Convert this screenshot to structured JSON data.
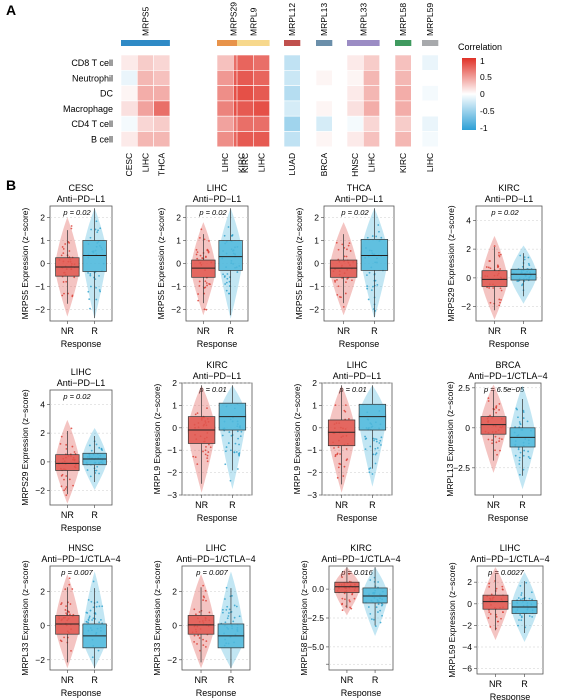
{
  "panel_a_label": "A",
  "panel_b_label": "B",
  "legend": {
    "title": "Correlation",
    "ticks": [
      "1",
      "0.5",
      "0",
      "-0.5",
      "-1"
    ],
    "high_color": "#e03127",
    "mid_color": "#ffffff",
    "low_color": "#2c9fd6"
  },
  "chart_data": [
    {
      "type": "heatmap",
      "panel": "A",
      "rows": [
        "CD8 T cell",
        "Neutrophil",
        "DC",
        "Macrophage",
        "CD4 T cell",
        "B cell"
      ],
      "groups": [
        {
          "gene": "MRPS5",
          "color": "#2f8ac6",
          "cancers": [
            "CESC",
            "LIHC",
            "THCA"
          ],
          "values": [
            [
              0.1,
              0.25,
              0.2
            ],
            [
              -0.1,
              0.35,
              0.3
            ],
            [
              0.05,
              0.4,
              0.4
            ],
            [
              0.15,
              0.45,
              0.7
            ],
            [
              -0.05,
              0.2,
              0.25
            ],
            [
              0.1,
              0.35,
              0.35
            ]
          ]
        },
        {
          "gene": "MRPS29",
          "color": "#e8934a",
          "cancers": [
            "LIHC",
            "KIRC"
          ],
          "values": [
            [
              0.3,
              0.7
            ],
            [
              0.5,
              0.8
            ],
            [
              0.55,
              0.85
            ],
            [
              0.6,
              0.85
            ],
            [
              0.45,
              0.65
            ],
            [
              0.55,
              0.75
            ]
          ]
        },
        {
          "gene": "MRPL9",
          "color": "#f7d88c",
          "cancers": [
            "KIRC",
            "LIHC"
          ],
          "values": [
            [
              0.75,
              0.7
            ],
            [
              0.8,
              0.75
            ],
            [
              0.85,
              0.8
            ],
            [
              0.8,
              0.85
            ],
            [
              0.7,
              0.7
            ],
            [
              0.8,
              0.8
            ]
          ]
        },
        {
          "gene": "MRPL12",
          "color": "#c0504d",
          "cancers": [
            "LUAD"
          ],
          "values": [
            [
              -0.3
            ],
            [
              -0.25
            ],
            [
              -0.35
            ],
            [
              -0.2
            ],
            [
              -0.45
            ],
            [
              -0.3
            ]
          ]
        },
        {
          "gene": "MRPL13",
          "color": "#6b8faa",
          "cancers": [
            "BRCA"
          ],
          "values": [
            [
              0.0
            ],
            [
              0.05
            ],
            [
              0.0
            ],
            [
              0.05
            ],
            [
              -0.2
            ],
            [
              0.05
            ]
          ]
        },
        {
          "gene": "MRPL33",
          "color": "#9b8cc4",
          "cancers": [
            "HNSC",
            "LIHC"
          ],
          "values": [
            [
              0.1,
              0.25
            ],
            [
              0.05,
              0.35
            ],
            [
              0.1,
              0.35
            ],
            [
              0.15,
              0.4
            ],
            [
              -0.05,
              0.2
            ],
            [
              0.1,
              0.3
            ]
          ]
        },
        {
          "gene": "MRPL58",
          "color": "#3f9a5f",
          "cancers": [
            "KIRC"
          ],
          "values": [
            [
              0.3
            ],
            [
              0.35
            ],
            [
              0.4
            ],
            [
              0.4
            ],
            [
              0.25
            ],
            [
              0.35
            ]
          ]
        },
        {
          "gene": "MRPL59",
          "color": "#a7a9ac",
          "cancers": [
            "LIHC"
          ],
          "values": [
            [
              -0.1
            ],
            [
              0.0
            ],
            [
              -0.05
            ],
            [
              0.0
            ],
            [
              -0.1
            ],
            [
              -0.05
            ]
          ]
        }
      ]
    },
    {
      "type": "box",
      "cancer": "CESC",
      "therapy": "Anti−PD−L1",
      "ylabel": "MRPS5 Expression (z−score)",
      "xlabel": "Response",
      "pval": "p = 0.02",
      "ylim": [
        -2.5,
        2.5
      ],
      "yticks": [
        -2,
        -1,
        0,
        1,
        2
      ],
      "groups": [
        "NR",
        "R"
      ],
      "stats": [
        {
          "q1": -0.55,
          "median": -0.15,
          "q3": 0.25
        },
        {
          "q1": -0.35,
          "median": 0.35,
          "q3": 1.0
        }
      ]
    },
    {
      "type": "box",
      "cancer": "LIHC",
      "therapy": "Anti−PD−L1",
      "ylabel": "MRPS5 Expression (z−score)",
      "xlabel": "Response",
      "pval": "p = 0.02",
      "ylim": [
        -2.5,
        2.5
      ],
      "yticks": [
        -2,
        -1,
        0,
        1,
        2
      ],
      "groups": [
        "NR",
        "R"
      ],
      "stats": [
        {
          "q1": -0.6,
          "median": -0.2,
          "q3": 0.15
        },
        {
          "q1": -0.3,
          "median": 0.3,
          "q3": 1.0
        }
      ]
    },
    {
      "type": "box",
      "cancer": "THCA",
      "therapy": "Anti−PD−L1",
      "ylabel": "MRPS5 Expression (z−score)",
      "xlabel": "Response",
      "pval": "p = 0.02",
      "ylim": [
        -2.5,
        2.5
      ],
      "yticks": [
        -2,
        -1,
        0,
        1,
        2
      ],
      "groups": [
        "NR",
        "R"
      ],
      "stats": [
        {
          "q1": -0.6,
          "median": -0.2,
          "q3": 0.15
        },
        {
          "q1": -0.3,
          "median": 0.35,
          "q3": 1.05
        }
      ]
    },
    {
      "type": "box",
      "cancer": "KIRC",
      "therapy": "Anti−PD−L1",
      "ylabel": "MRPS29 Expression (z−score)",
      "xlabel": "Response",
      "pval": "p = 0.02",
      "ylim": [
        -3,
        5
      ],
      "yticks": [
        -2,
        0,
        2,
        4
      ],
      "groups": [
        "NR",
        "R"
      ],
      "stats": [
        {
          "q1": -0.6,
          "median": -0.1,
          "q3": 0.5
        },
        {
          "q1": -0.15,
          "median": 0.25,
          "q3": 0.6
        }
      ]
    },
    {
      "type": "box",
      "cancer": "LIHC",
      "therapy": "Anti−PD−L1",
      "ylabel": "MRPS29 Expression (z−score)",
      "xlabel": "Response",
      "pval": "p = 0.02",
      "ylim": [
        -3,
        5
      ],
      "yticks": [
        -2,
        0,
        2,
        4
      ],
      "groups": [
        "NR",
        "R"
      ],
      "stats": [
        {
          "q1": -0.6,
          "median": -0.1,
          "q3": 0.5
        },
        {
          "q1": -0.2,
          "median": 0.2,
          "q3": 0.6
        }
      ]
    },
    {
      "type": "box",
      "cancer": "KIRC",
      "therapy": "Anti−PD−L1",
      "ylabel": "MRPL9 Expression (z−score)",
      "xlabel": "Response",
      "pval": "p = 0.01",
      "ylim": [
        -3,
        2
      ],
      "yticks": [
        -3,
        -2,
        -1,
        0,
        1,
        2
      ],
      "groups": [
        "NR",
        "R"
      ],
      "stats": [
        {
          "q1": -0.7,
          "median": -0.1,
          "q3": 0.5
        },
        {
          "q1": -0.1,
          "median": 0.5,
          "q3": 1.1
        }
      ]
    },
    {
      "type": "box",
      "cancer": "LIHC",
      "therapy": "Anti−PD−L1",
      "ylabel": "MRPL9 Expression (z−score)",
      "xlabel": "Response",
      "pval": "p = 0.01",
      "ylim": [
        -3,
        2
      ],
      "yticks": [
        -3,
        -2,
        -1,
        0,
        1,
        2
      ],
      "groups": [
        "NR",
        "R"
      ],
      "stats": [
        {
          "q1": -0.8,
          "median": -0.2,
          "q3": 0.35
        },
        {
          "q1": -0.1,
          "median": 0.5,
          "q3": 1.05
        }
      ]
    },
    {
      "type": "box",
      "cancer": "BRCA",
      "therapy": "Anti−PD−1/CTLA−4",
      "ylabel": "MRPL13 Expression (z−score)",
      "xlabel": "Response",
      "pval": "p = 6.5e−05",
      "ylim": [
        -4.2,
        2.8
      ],
      "yticks": [
        2.5,
        0,
        -2.5
      ],
      "groups": [
        "NR",
        "R"
      ],
      "stats": [
        {
          "q1": -0.4,
          "median": 0.2,
          "q3": 0.7
        },
        {
          "q1": -1.2,
          "median": -0.6,
          "q3": 0.0
        }
      ]
    },
    {
      "type": "box",
      "cancer": "HNSC",
      "therapy": "Anti−PD−1/CTLA−4",
      "ylabel": "MRPL33 Expression (z−score)",
      "xlabel": "Response",
      "pval": "p = 0.007",
      "ylim": [
        -2.6,
        3.5
      ],
      "yticks": [
        -2,
        0,
        2
      ],
      "groups": [
        "NR",
        "R"
      ],
      "stats": [
        {
          "q1": -0.5,
          "median": 0.1,
          "q3": 0.6
        },
        {
          "q1": -1.3,
          "median": -0.6,
          "q3": 0.1
        }
      ]
    },
    {
      "type": "box",
      "cancer": "LIHC",
      "therapy": "Anti−PD−1/CTLA−4",
      "ylabel": "MRPL33 Expression (z−score)",
      "xlabel": "Response",
      "pval": "p = 0.007",
      "ylim": [
        -2.6,
        3.5
      ],
      "yticks": [
        -2,
        0,
        2
      ],
      "groups": [
        "NR",
        "R"
      ],
      "stats": [
        {
          "q1": -0.5,
          "median": 0.05,
          "q3": 0.6
        },
        {
          "q1": -1.3,
          "median": -0.6,
          "q3": 0.1
        }
      ]
    },
    {
      "type": "box",
      "cancer": "KIRC",
      "therapy": "Anti−PD−1/CTLA−4",
      "ylabel": "MRPL58 Expression (z−score)",
      "xlabel": "Response",
      "pval": "p = 0.016",
      "ylim": [
        -7,
        2
      ],
      "yticks": [
        0,
        -2.5,
        -5,
        -6.5
      ],
      "ytick_labels": [
        "0.0",
        "−2.5",
        "−5.0",
        ""
      ],
      "groups": [
        "NR",
        "R"
      ],
      "stats": [
        {
          "q1": -0.3,
          "median": 0.2,
          "q3": 0.6
        },
        {
          "q1": -1.2,
          "median": -0.6,
          "q3": 0.1
        }
      ]
    },
    {
      "type": "box",
      "cancer": "LIHC",
      "therapy": "Anti−PD−1/CTLA−4",
      "ylabel": "MRPL59 Expression (z−score)",
      "xlabel": "Response",
      "pval": "p = 0.0027",
      "ylim": [
        -6.5,
        3.5
      ],
      "yticks": [
        2,
        0,
        -2,
        -4,
        -6
      ],
      "groups": [
        "NR",
        "R"
      ],
      "stats": [
        {
          "q1": -0.5,
          "median": 0.2,
          "q3": 0.8
        },
        {
          "q1": -0.9,
          "median": -0.3,
          "q3": 0.3
        }
      ]
    }
  ]
}
